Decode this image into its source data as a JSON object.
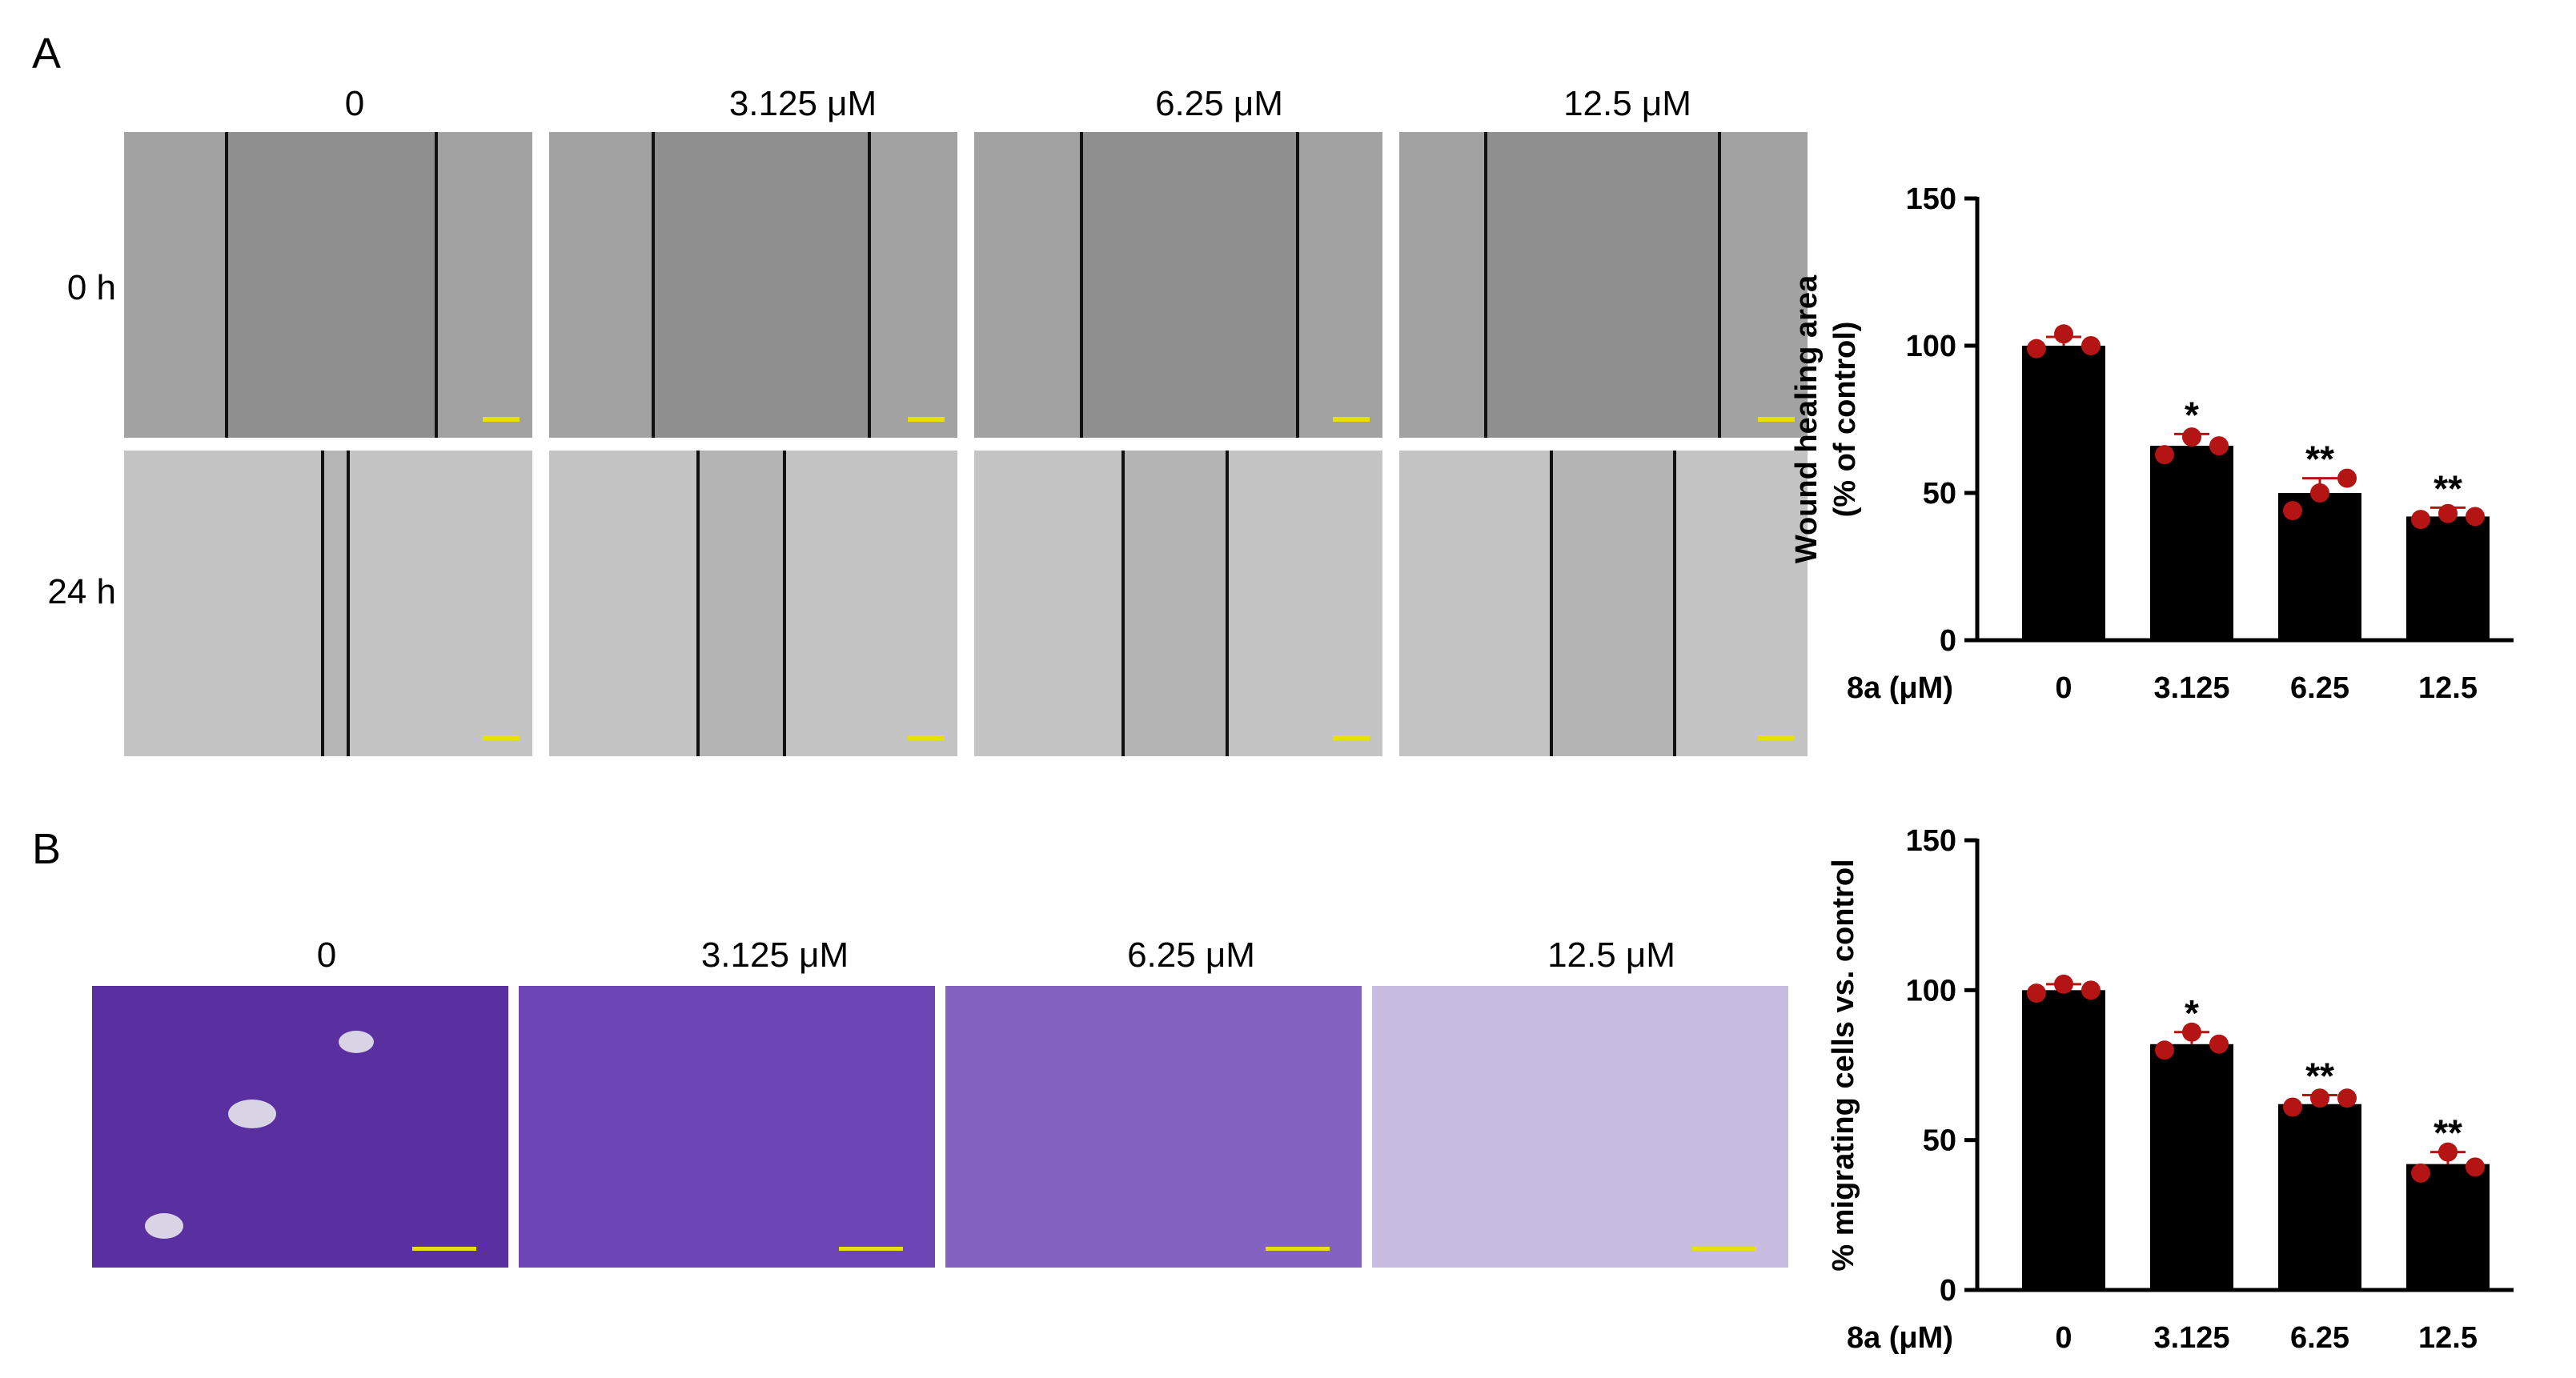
{
  "panels": {
    "A": {
      "letter": "A",
      "column_labels": [
        "0",
        "3.125 μM",
        "6.25 μM",
        "12.5 μM"
      ],
      "row_labels": [
        "0 h",
        "24 h"
      ]
    },
    "B": {
      "letter": "B",
      "column_labels": [
        "0",
        "3.125 μM",
        "6.25 μM",
        "12.5 μM"
      ]
    }
  },
  "colors": {
    "bar": "#000000",
    "dot": "#b41414",
    "errorbar": "#b41414",
    "micro_bg_0h": "#8c8c8c",
    "micro_bg_24h": "#bdbdbd",
    "stain_light": "#e6e0ee",
    "stain_dark": "#5a2fa0",
    "scalebar": "#e8e000"
  },
  "chart_data": [
    {
      "type": "bar",
      "id": "wound",
      "ylabel_line1": "Wound healing area",
      "ylabel_line2": "(% of control)",
      "xlabel": "8a (μM)",
      "categories": [
        "0",
        "3.125",
        "6.25",
        "12.5"
      ],
      "values": [
        100,
        66,
        50,
        42
      ],
      "errors": [
        3,
        4,
        5,
        3
      ],
      "points": [
        [
          99,
          104,
          100
        ],
        [
          63,
          69,
          66
        ],
        [
          44,
          50,
          55
        ],
        [
          41,
          43,
          42
        ]
      ],
      "significance": [
        "",
        "*",
        "**",
        "**"
      ],
      "ylim": [
        0,
        150
      ],
      "yticks": [
        0,
        50,
        100,
        150
      ]
    },
    {
      "type": "bar",
      "id": "transwell",
      "ylabel_line1": "% migrating cells vs. control",
      "ylabel_line2": "",
      "xlabel": "8a (μM)",
      "categories": [
        "0",
        "3.125",
        "6.25",
        "12.5"
      ],
      "values": [
        100,
        82,
        62,
        42
      ],
      "errors": [
        2,
        4,
        3,
        4
      ],
      "points": [
        [
          99,
          102,
          100
        ],
        [
          80,
          86,
          82
        ],
        [
          61,
          64,
          64
        ],
        [
          39,
          46,
          41
        ]
      ],
      "significance": [
        "",
        "*",
        "**",
        "**"
      ],
      "ylim": [
        0,
        150
      ],
      "yticks": [
        0,
        50,
        100,
        150
      ]
    }
  ]
}
